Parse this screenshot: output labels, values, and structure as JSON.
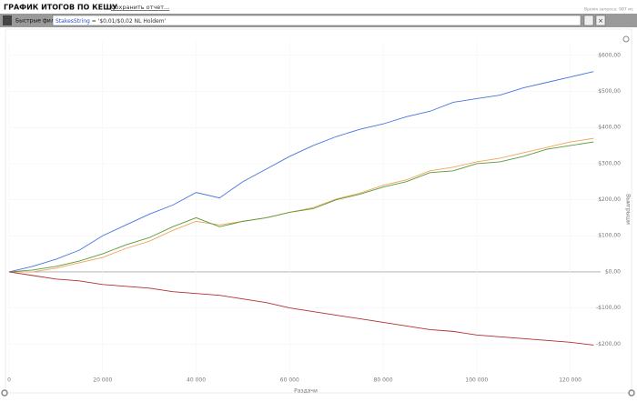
{
  "header": {
    "title": "ГРАФИК ИТОГОВ ПО КЕШУ",
    "save": "Сохранить отчет...",
    "time": "Время запроса: 987 мс"
  },
  "toolbar": {
    "label": "Быстрые фильт",
    "field": "StakesString",
    "filter": " = '$0,01/$0,02 NL Holdem'"
  },
  "chart_data": {
    "type": "line",
    "xlabel": "Раздачи",
    "ylabel": "Выигрыши",
    "x": [
      0,
      5000,
      10000,
      15000,
      20000,
      25000,
      30000,
      35000,
      40000,
      45000,
      50000,
      55000,
      60000,
      65000,
      70000,
      75000,
      80000,
      85000,
      90000,
      95000,
      100000,
      105000,
      110000,
      115000,
      120000,
      125000
    ],
    "series": [
      {
        "color": "#4a74e0",
        "values": [
          0,
          15,
          35,
          60,
          100,
          130,
          160,
          185,
          220,
          205,
          250,
          285,
          320,
          350,
          375,
          395,
          410,
          430,
          445,
          470,
          480,
          490,
          510,
          525,
          540,
          555
        ]
      },
      {
        "color": "#f2a45a",
        "values": [
          0,
          0,
          10,
          25,
          40,
          65,
          85,
          115,
          140,
          130,
          140,
          150,
          165,
          178,
          202,
          218,
          240,
          255,
          280,
          290,
          305,
          315,
          330,
          345,
          360,
          370
        ]
      },
      {
        "color": "#5a9a3a",
        "values": [
          0,
          5,
          15,
          30,
          50,
          75,
          95,
          125,
          150,
          125,
          140,
          150,
          165,
          175,
          200,
          215,
          235,
          250,
          275,
          280,
          300,
          305,
          320,
          340,
          350,
          360
        ]
      },
      {
        "color": "#b03030",
        "values": [
          0,
          -10,
          -20,
          -25,
          -35,
          -40,
          -45,
          -55,
          -60,
          -65,
          -75,
          -85,
          -100,
          -110,
          -120,
          -130,
          -140,
          -150,
          -160,
          -165,
          -175,
          -180,
          -185,
          -190,
          -195,
          -203
        ]
      }
    ],
    "xlim": [
      0,
      126500
    ],
    "ylim": [
      -280,
      640
    ],
    "xticks": [
      0,
      {
        "value": 20000,
        "label": "20 000"
      },
      {
        "value": 40000,
        "label": "40 000"
      },
      {
        "value": 60000,
        "label": "60 000"
      },
      {
        "value": 80000,
        "label": "80 000"
      },
      {
        "value": 100000,
        "label": "100 000"
      },
      {
        "value": 120000,
        "label": "120 000"
      }
    ],
    "yticks": [
      {
        "value": -200,
        "label": "-$200,00"
      },
      {
        "value": -100,
        "label": "-$100,00"
      },
      {
        "value": 0,
        "label": "$0,00"
      },
      {
        "value": 100,
        "label": "$100,00"
      },
      {
        "value": 200,
        "label": "$200,00"
      },
      {
        "value": 300,
        "label": "$300,00"
      },
      {
        "value": 400,
        "label": "$400,00"
      },
      {
        "value": 500,
        "label": "$500,00"
      },
      {
        "value": 600,
        "label": "$600,00"
      }
    ],
    "grid": true
  }
}
